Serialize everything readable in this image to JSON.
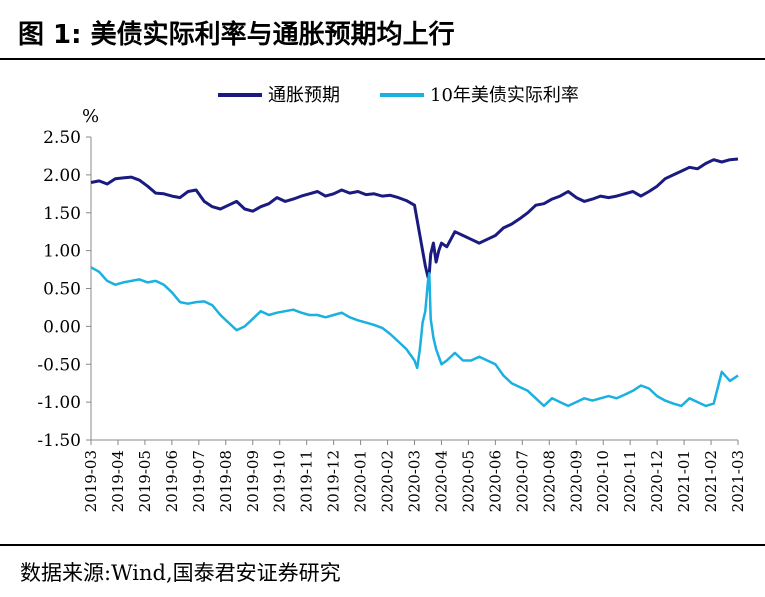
{
  "header": {
    "title": "图 1:  美债实际利率与通胀预期均上行"
  },
  "footer": {
    "source": "数据来源:Wind,国泰君安证券研究"
  },
  "chart_data": {
    "type": "line",
    "title": "图 1:  美债实际利率与通胀预期均上行",
    "ylabel": "%",
    "ylim": [
      -1.5,
      2.5
    ],
    "yticks": [
      "2.50",
      "2.00",
      "1.50",
      "1.00",
      "0.50",
      "0.00",
      "-0.50",
      "-1.00",
      "-1.50"
    ],
    "ytick_values": [
      2.5,
      2.0,
      1.5,
      1.0,
      0.5,
      0.0,
      -0.5,
      -1.0,
      -1.5
    ],
    "categories": [
      "2019-03",
      "2019-04",
      "2019-05",
      "2019-06",
      "2019-07",
      "2019-08",
      "2019-09",
      "2019-10",
      "2019-11",
      "2019-12",
      "2020-01",
      "2020-02",
      "2020-03",
      "2020-04",
      "2020-05",
      "2020-06",
      "2020-07",
      "2020-08",
      "2020-09",
      "2020-10",
      "2020-11",
      "2020-12",
      "2021-01",
      "2021-02",
      "2021-03"
    ],
    "legend_position": "top",
    "grid": false,
    "series": [
      {
        "name": "通胀预期",
        "color": "#1a1a80",
        "x": [
          0,
          0.3,
          0.6,
          0.9,
          1.2,
          1.5,
          1.8,
          2.1,
          2.4,
          2.7,
          3.0,
          3.3,
          3.6,
          3.9,
          4.2,
          4.5,
          4.8,
          5.1,
          5.4,
          5.7,
          6.0,
          6.3,
          6.6,
          6.9,
          7.2,
          7.5,
          7.8,
          8.1,
          8.4,
          8.7,
          9.0,
          9.3,
          9.6,
          9.9,
          10.2,
          10.5,
          10.8,
          11.1,
          11.4,
          11.7,
          12.0,
          12.1,
          12.2,
          12.3,
          12.4,
          12.5,
          12.55,
          12.6,
          12.7,
          12.8,
          12.9,
          13.0,
          13.2,
          13.5,
          13.8,
          14.1,
          14.4,
          14.7,
          15.0,
          15.3,
          15.6,
          15.9,
          16.2,
          16.5,
          16.8,
          17.1,
          17.4,
          17.7,
          18.0,
          18.3,
          18.6,
          18.9,
          19.2,
          19.5,
          19.8,
          20.1,
          20.4,
          20.7,
          21.0,
          21.3,
          21.6,
          21.9,
          22.2,
          22.5,
          22.8,
          23.1,
          23.4,
          23.7,
          24.0
        ],
        "values": [
          1.9,
          1.92,
          1.88,
          1.95,
          1.96,
          1.97,
          1.93,
          1.85,
          1.76,
          1.75,
          1.72,
          1.7,
          1.78,
          1.8,
          1.65,
          1.58,
          1.55,
          1.6,
          1.65,
          1.55,
          1.52,
          1.58,
          1.62,
          1.7,
          1.65,
          1.68,
          1.72,
          1.75,
          1.78,
          1.72,
          1.75,
          1.8,
          1.76,
          1.78,
          1.74,
          1.75,
          1.72,
          1.73,
          1.7,
          1.66,
          1.6,
          1.4,
          1.2,
          1.0,
          0.8,
          0.65,
          0.7,
          0.95,
          1.1,
          0.85,
          1.0,
          1.1,
          1.05,
          1.25,
          1.2,
          1.15,
          1.1,
          1.15,
          1.2,
          1.3,
          1.35,
          1.42,
          1.5,
          1.6,
          1.62,
          1.68,
          1.72,
          1.78,
          1.7,
          1.65,
          1.68,
          1.72,
          1.7,
          1.72,
          1.75,
          1.78,
          1.72,
          1.78,
          1.85,
          1.95,
          2.0,
          2.05,
          2.1,
          2.08,
          2.15,
          2.2,
          2.17,
          2.2,
          2.21
        ]
      },
      {
        "name": "10年美债实际利率",
        "color": "#1ab0e0",
        "x": [
          0,
          0.3,
          0.6,
          0.9,
          1.2,
          1.5,
          1.8,
          2.1,
          2.4,
          2.7,
          3.0,
          3.3,
          3.6,
          3.9,
          4.2,
          4.5,
          4.8,
          5.1,
          5.4,
          5.7,
          6.0,
          6.3,
          6.6,
          6.9,
          7.2,
          7.5,
          7.8,
          8.1,
          8.4,
          8.7,
          9.0,
          9.3,
          9.6,
          9.9,
          10.2,
          10.5,
          10.8,
          11.1,
          11.4,
          11.7,
          12.0,
          12.1,
          12.2,
          12.3,
          12.4,
          12.5,
          12.55,
          12.6,
          12.7,
          12.8,
          12.9,
          13.0,
          13.2,
          13.5,
          13.8,
          14.1,
          14.4,
          14.7,
          15.0,
          15.3,
          15.6,
          15.9,
          16.2,
          16.5,
          16.8,
          17.1,
          17.4,
          17.7,
          18.0,
          18.3,
          18.6,
          18.9,
          19.2,
          19.5,
          19.8,
          20.1,
          20.4,
          20.7,
          21.0,
          21.3,
          21.6,
          21.9,
          22.2,
          22.5,
          22.8,
          23.1,
          23.4,
          23.7,
          24.0
        ],
        "values": [
          0.78,
          0.72,
          0.6,
          0.55,
          0.58,
          0.6,
          0.62,
          0.58,
          0.6,
          0.55,
          0.45,
          0.32,
          0.3,
          0.32,
          0.33,
          0.28,
          0.15,
          0.05,
          -0.05,
          0.0,
          0.1,
          0.2,
          0.15,
          0.18,
          0.2,
          0.22,
          0.18,
          0.15,
          0.15,
          0.12,
          0.15,
          0.18,
          0.12,
          0.08,
          0.05,
          0.02,
          -0.02,
          -0.1,
          -0.2,
          -0.3,
          -0.45,
          -0.55,
          -0.3,
          0.05,
          0.2,
          0.6,
          0.7,
          0.1,
          -0.15,
          -0.3,
          -0.4,
          -0.5,
          -0.45,
          -0.35,
          -0.45,
          -0.45,
          -0.4,
          -0.45,
          -0.5,
          -0.65,
          -0.75,
          -0.8,
          -0.85,
          -0.95,
          -1.05,
          -0.95,
          -1.0,
          -1.05,
          -1.0,
          -0.95,
          -0.98,
          -0.95,
          -0.92,
          -0.95,
          -0.9,
          -0.85,
          -0.78,
          -0.82,
          -0.92,
          -0.98,
          -1.02,
          -1.05,
          -0.95,
          -1.0,
          -1.05,
          -1.02,
          -0.6,
          -0.72,
          -0.65
        ]
      }
    ]
  }
}
